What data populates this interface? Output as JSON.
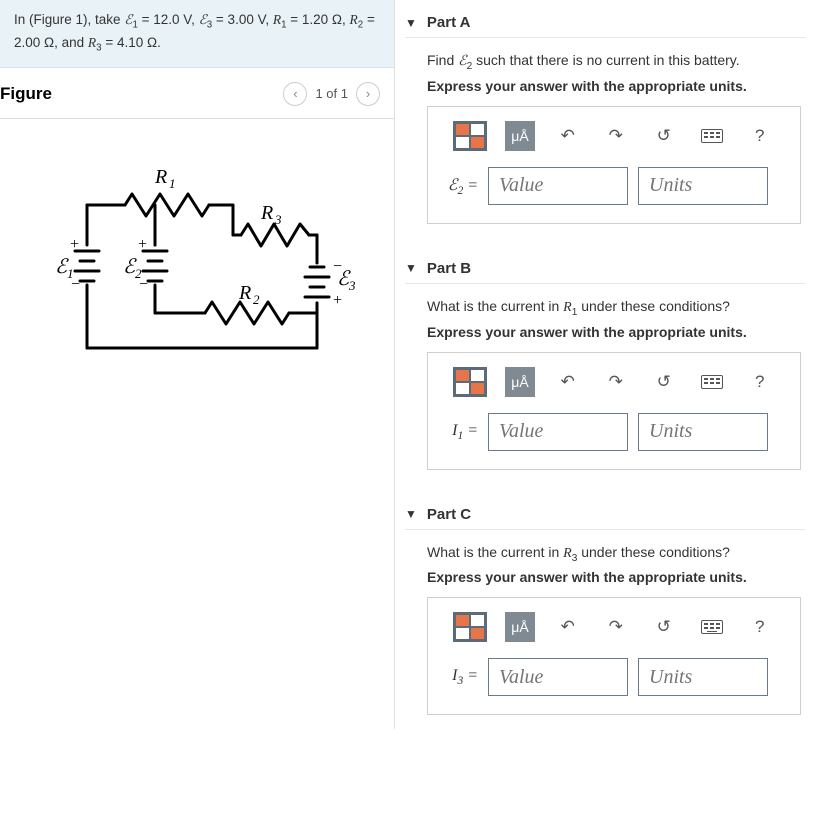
{
  "problem": {
    "text_html": "In (Figure 1), take <span class=\"mi\">ℰ</span><sub>1</sub> = 12.0 V, <span class=\"mi\">ℰ</span><sub>3</sub> = 3.00 V, <span class=\"mi\">R</span><sub>1</sub> = 1.20 Ω, <span class=\"mi\">R</span><sub>2</sub> = 2.00 Ω, and <span class=\"mi\">R</span><sub>3</sub> = 4.10 Ω."
  },
  "figure": {
    "title": "Figure",
    "pager": "1 of 1",
    "labels": {
      "R1": "R₁",
      "R2": "R₂",
      "R3": "R₃",
      "E1": "ℰ₁",
      "E2": "ℰ₂",
      "E3": "ℰ₃"
    }
  },
  "toolbar": {
    "units_btn": "μÅ",
    "undo": "↶",
    "redo": "↷",
    "reset": "↺",
    "help": "?"
  },
  "parts": {
    "A": {
      "title": "Part A",
      "prompt_html": "Find <span class=\"mi\">ℰ</span><sub>2</sub> such that there is no current in this battery.",
      "instruct": "Express your answer with the appropriate units.",
      "var_html": "<span class=\"mi\">ℰ</span><sub>2</sub> =",
      "value_ph": "Value",
      "units_ph": "Units"
    },
    "B": {
      "title": "Part B",
      "prompt_html": "What is the current in <span class=\"mi\">R</span><sub>1</sub> under these conditions?",
      "instruct": "Express your answer with the appropriate units.",
      "var_html": "<span class=\"mi\">I</span><sub>1</sub> =",
      "value_ph": "Value",
      "units_ph": "Units"
    },
    "C": {
      "title": "Part C",
      "prompt_html": "What is the current in <span class=\"mi\">R</span><sub>3</sub> under these conditions?",
      "instruct": "Express your answer with the appropriate units.",
      "var_html": "<span class=\"mi\">I</span><sub>3</sub> =",
      "value_ph": "Value",
      "units_ph": "Units"
    }
  }
}
